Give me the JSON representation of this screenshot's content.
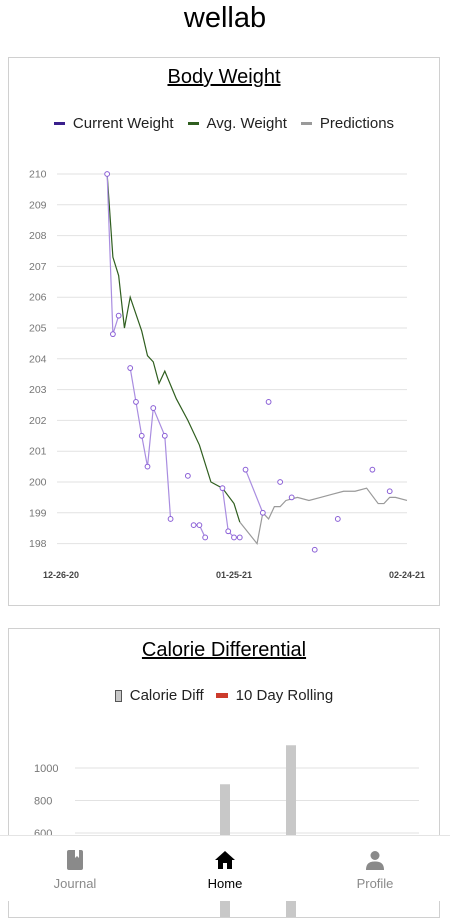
{
  "app": {
    "title": "wellab"
  },
  "weight_card": {
    "title": "Body Weight",
    "legend": [
      {
        "label": "Current Weight",
        "color": "#3a1f8c"
      },
      {
        "label": "Avg. Weight",
        "color": "#2f5e1f"
      },
      {
        "label": "Predictions",
        "color": "#9a9a9a"
      }
    ]
  },
  "calorie_card": {
    "title": "Calorie Differential",
    "legend": [
      {
        "label": "Calorie Diff",
        "color": "#c8c8c8"
      },
      {
        "label": "10 Day Rolling",
        "color": "#cc3b2c"
      }
    ]
  },
  "tabs": [
    {
      "label": "Journal",
      "icon": "journal-icon",
      "active": false
    },
    {
      "label": "Home",
      "icon": "home-icon",
      "active": true
    },
    {
      "label": "Profile",
      "icon": "profile-icon",
      "active": false
    }
  ],
  "chart_data": [
    {
      "type": "line",
      "title": "Body Weight",
      "x_ticks": [
        "12-26-20",
        "01-25-21",
        "02-24-21"
      ],
      "ylim": [
        197.5,
        210
      ],
      "y_ticks": [
        198,
        199,
        200,
        201,
        202,
        203,
        204,
        205,
        206,
        207,
        208,
        209,
        210
      ],
      "grid": true,
      "legend_position": "top",
      "series": [
        {
          "name": "Current Weight",
          "style": "line-with-points",
          "color": "#a98de0",
          "x": [
            "01-03-21",
            "01-04-21",
            "01-05-21",
            "01-07-21",
            "01-08-21",
            "01-09-21",
            "01-10-21",
            "01-11-21",
            "01-13-21",
            "01-14-21",
            "01-17-21",
            "01-18-21",
            "01-19-21",
            "01-20-21",
            "01-23-21",
            "01-24-21",
            "01-25-21",
            "01-26-21",
            "01-27-21",
            "01-30-21",
            "01-31-21",
            "02-02-21",
            "02-04-21",
            "02-08-21",
            "02-12-21",
            "02-18-21",
            "02-21-21"
          ],
          "y": [
            210.0,
            204.8,
            205.4,
            203.7,
            202.6,
            201.5,
            200.5,
            202.4,
            201.5,
            198.8,
            200.2,
            198.6,
            198.6,
            198.2,
            199.8,
            198.4,
            198.2,
            198.2,
            200.4,
            199.0,
            202.6,
            200.0,
            199.5,
            197.8,
            198.8,
            200.4,
            199.7
          ],
          "segments": [
            [
              0,
              2
            ],
            [
              3,
              9
            ],
            [
              11,
              13
            ],
            [
              14,
              17
            ],
            [
              18,
              19
            ]
          ]
        },
        {
          "name": "Avg. Weight",
          "color": "#2f5e1f",
          "x": [
            "01-03-21",
            "01-04-21",
            "01-05-21",
            "01-06-21",
            "01-07-21",
            "01-09-21",
            "01-10-21",
            "01-11-21",
            "01-12-21",
            "01-13-21",
            "01-15-21",
            "01-17-21",
            "01-19-21",
            "01-21-21",
            "01-23-21",
            "01-25-21",
            "01-26-21"
          ],
          "y": [
            210.0,
            207.3,
            206.7,
            205.0,
            206.0,
            204.9,
            204.1,
            203.9,
            203.2,
            203.6,
            202.7,
            202.0,
            201.2,
            200.0,
            199.8,
            199.3,
            198.7
          ]
        },
        {
          "name": "Predictions",
          "color": "#9a9a9a",
          "x": [
            "01-26-21",
            "01-29-21",
            "01-30-21",
            "01-31-21",
            "02-01-21",
            "02-02-21",
            "02-03-21",
            "02-05-21",
            "02-07-21",
            "02-09-21",
            "02-11-21",
            "02-13-21",
            "02-15-21",
            "02-17-21",
            "02-19-21",
            "02-20-21",
            "02-21-21",
            "02-22-21",
            "02-24-21"
          ],
          "y": [
            198.7,
            198.0,
            199.0,
            198.8,
            199.2,
            199.2,
            199.4,
            199.5,
            199.4,
            199.5,
            199.6,
            199.7,
            199.7,
            199.8,
            199.3,
            199.3,
            199.5,
            199.5,
            199.4
          ]
        }
      ]
    },
    {
      "type": "bar",
      "title": "Calorie Differential",
      "y_ticks": [
        600,
        800,
        1000
      ],
      "grid": true,
      "legend_position": "top",
      "series": [
        {
          "name": "Calorie Diff",
          "color": "#c8c8c8",
          "values": [
            900,
            1140
          ]
        }
      ]
    }
  ]
}
